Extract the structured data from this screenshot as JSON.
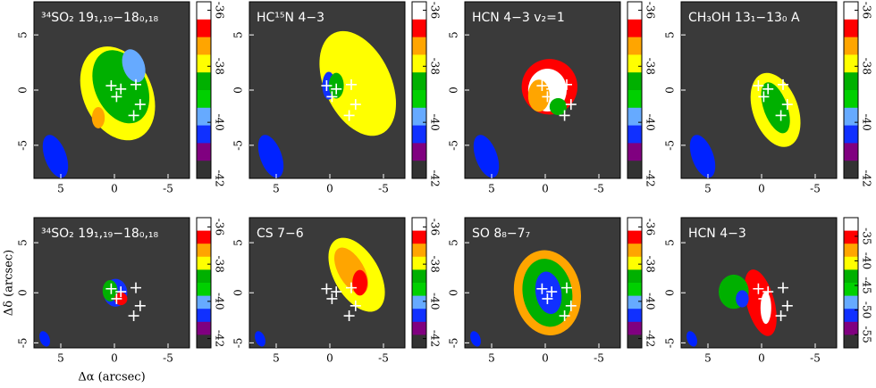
{
  "chart_data": [
    {
      "type": "map",
      "title": "³⁴SO₂ 19₁,₁₉−18₀,₁₈",
      "xlim": [
        7.5,
        -7
      ],
      "ylim": [
        -8,
        8
      ],
      "xticks": [
        5,
        0,
        -5
      ],
      "yticks": [
        -5,
        0,
        5
      ],
      "clim": [
        -35.7,
        -42
      ],
      "cticks": [
        -36,
        -38,
        -40,
        -42
      ],
      "colors": [
        "#ffffff",
        "#ff0000",
        "#ffa500",
        "#ffff00",
        "#00b000",
        "#00d000",
        "#66aaff",
        "#1030ff",
        "#800080",
        "#333333"
      ]
    },
    {
      "type": "map",
      "title": "HC¹⁵N 4−3",
      "xlim": [
        7.5,
        -7
      ],
      "ylim": [
        -8,
        8
      ],
      "xticks": [
        5,
        0,
        -5
      ],
      "yticks": [
        -5,
        0,
        5
      ],
      "clim": [
        -35.7,
        -42
      ],
      "cticks": [
        -36,
        -38,
        -40,
        -42
      ],
      "colors": [
        "#ffffff",
        "#ff0000",
        "#ffa500",
        "#ffff00",
        "#00b000",
        "#00d000",
        "#66aaff",
        "#1030ff",
        "#800080",
        "#333333"
      ]
    },
    {
      "type": "map",
      "title": "HCN 4−3 v₂=1",
      "xlim": [
        7.5,
        -7
      ],
      "ylim": [
        -8,
        8
      ],
      "xticks": [
        5,
        0,
        -5
      ],
      "yticks": [
        -5,
        0,
        5
      ],
      "clim": [
        -35.7,
        -42
      ],
      "cticks": [
        -36,
        -38,
        -40,
        -42
      ],
      "colors": [
        "#ffffff",
        "#ff0000",
        "#ffa500",
        "#ffff00",
        "#00b000",
        "#00d000",
        "#66aaff",
        "#1030ff",
        "#800080",
        "#333333"
      ]
    },
    {
      "type": "map",
      "title": "CH₃OH 13₁−13₀ A",
      "xlim": [
        7.5,
        -7
      ],
      "ylim": [
        -8,
        8
      ],
      "xticks": [
        5,
        0,
        -5
      ],
      "yticks": [
        -5,
        0,
        5
      ],
      "clim": [
        -35.7,
        -42
      ],
      "cticks": [
        -36,
        -38,
        -40,
        -42
      ],
      "colors": [
        "#ffffff",
        "#ff0000",
        "#ffa500",
        "#ffff00",
        "#00b000",
        "#00d000",
        "#66aaff",
        "#1030ff",
        "#800080",
        "#333333"
      ]
    },
    {
      "type": "map",
      "title": "³⁴SO₂ 19₁,₁₉−18₀,₁₈",
      "xlabel": "Δα (arcsec)",
      "ylabel": "Δδ (arcsec)",
      "xlim": [
        7.5,
        -7
      ],
      "ylim": [
        -5.5,
        7.5
      ],
      "xticks": [
        5,
        0,
        -5
      ],
      "yticks": [
        -5,
        0,
        5
      ],
      "clim": [
        -35.5,
        -42.5
      ],
      "cticks": [
        -36,
        -38,
        -40,
        -42
      ],
      "colors": [
        "#ffffff",
        "#ff0000",
        "#ffa500",
        "#ffff00",
        "#00b000",
        "#00d000",
        "#66aaff",
        "#1030ff",
        "#800080",
        "#333333"
      ]
    },
    {
      "type": "map",
      "title": "CS 7−6",
      "xlim": [
        7.5,
        -7
      ],
      "ylim": [
        -5.5,
        7.5
      ],
      "xticks": [
        5,
        0,
        -5
      ],
      "yticks": [
        -5,
        0,
        5
      ],
      "clim": [
        -35.5,
        -42.5
      ],
      "cticks": [
        -36,
        -38,
        -40,
        -42
      ],
      "colors": [
        "#ffffff",
        "#ff0000",
        "#ffa500",
        "#ffff00",
        "#00b000",
        "#00d000",
        "#66aaff",
        "#1030ff",
        "#800080",
        "#333333"
      ]
    },
    {
      "type": "map",
      "title": "SO 8₈−7₇",
      "xlim": [
        7.5,
        -7
      ],
      "ylim": [
        -5.5,
        7.5
      ],
      "xticks": [
        5,
        0,
        -5
      ],
      "yticks": [
        -5,
        0,
        5
      ],
      "clim": [
        -35.5,
        -42.5
      ],
      "cticks": [
        -36,
        -38,
        -40,
        -42
      ],
      "colors": [
        "#ffffff",
        "#ff0000",
        "#ffa500",
        "#ffff00",
        "#00b000",
        "#00d000",
        "#66aaff",
        "#1030ff",
        "#800080",
        "#333333"
      ]
    },
    {
      "type": "map",
      "title": "HCN 4−3",
      "xlim": [
        7.5,
        -7
      ],
      "ylim": [
        -5.5,
        7.5
      ],
      "xticks": [
        5,
        0,
        -5
      ],
      "yticks": [
        -5,
        0,
        5
      ],
      "clim": [
        -31.2,
        -57.7
      ],
      "cticks": [
        -35,
        -40,
        -45,
        -50,
        -55
      ],
      "colors": [
        "#ffffff",
        "#ff0000",
        "#ffa500",
        "#ffff00",
        "#00b000",
        "#00d000",
        "#66aaff",
        "#1030ff",
        "#800080",
        "#333333"
      ]
    }
  ]
}
